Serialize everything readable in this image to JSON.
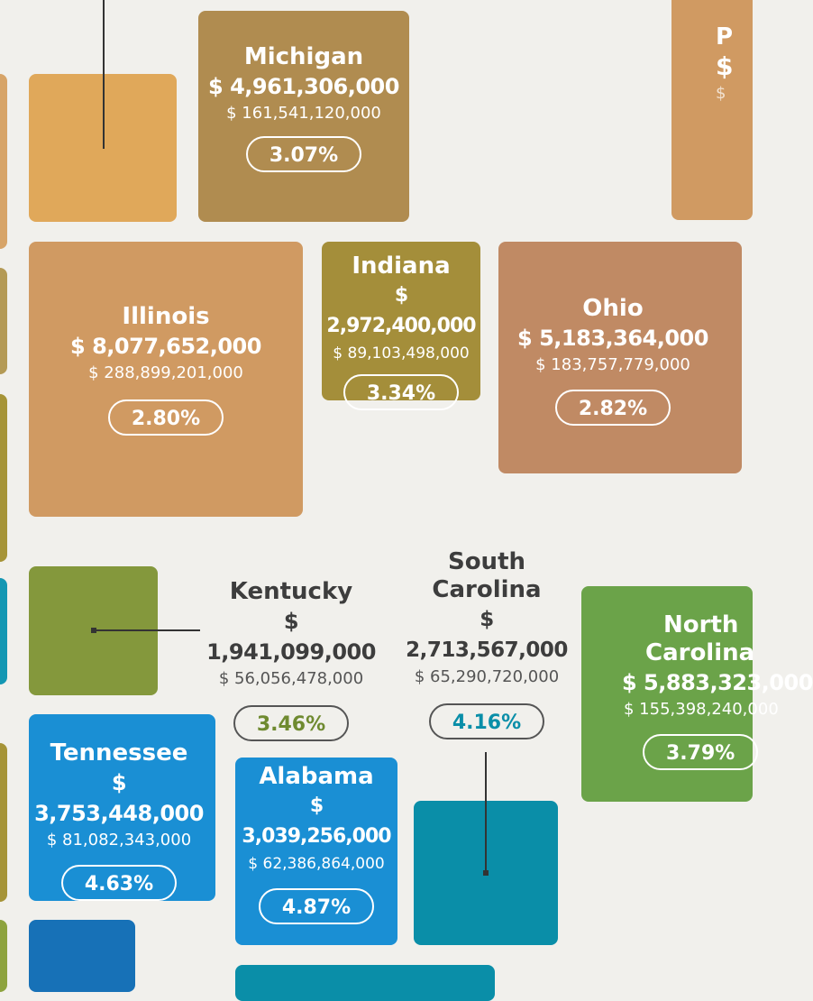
{
  "states": {
    "michigan": {
      "name": "Michigan",
      "amount": "$ 4,961,306,000",
      "total": "$ 161,541,120,000",
      "percent": "3.07%"
    },
    "illinois": {
      "name": "Illinois",
      "amount": "$ 8,077,652,000",
      "total": "$ 288,899,201,000",
      "percent": "2.80%"
    },
    "indiana": {
      "name": "Indiana",
      "amount": "$ 2,972,400,000",
      "total": "$ 89,103,498,000",
      "percent": "3.34%"
    },
    "ohio": {
      "name": "Ohio",
      "amount": "$ 5,183,364,000",
      "total": "$ 183,757,779,000",
      "percent": "2.82%"
    },
    "kentucky": {
      "name": "Kentucky",
      "amount": "$ 1,941,099,000",
      "total": "$ 56,056,478,000",
      "percent": "3.46%"
    },
    "south_carolina": {
      "name_line1": "South",
      "name_line2": "Carolina",
      "amount": "$ 2,713,567,000",
      "total": "$ 65,290,720,000",
      "percent": "4.16%"
    },
    "north_carolina": {
      "name_line1": "North",
      "name_line2": "Carolina",
      "amount": "$ 5,883,323,000",
      "total": "$ 155,398,240,000",
      "percent": "3.79%"
    },
    "tennessee": {
      "name": "Tennessee",
      "amount": "$ 3,753,448,000",
      "total": "$ 81,082,343,000",
      "percent": "4.63%"
    },
    "alabama": {
      "name": "Alabama",
      "amount": "$ 3,039,256,000",
      "total": "$ 62,386,864,000",
      "percent": "4.87%"
    },
    "partial_top_right": {
      "name": "P",
      "amount": "$",
      "total": "$"
    }
  },
  "colors": {
    "background": "#f1f0ec",
    "michigan": "#b08c50",
    "illinois": "#d09a62",
    "indiana": "#a48e3a",
    "ohio": "#c08a64",
    "kentucky_tile": "#84983c",
    "kentucky_percent": "#6f8a30",
    "south_carolina_tile": "#0a8ea8",
    "south_carolina_percent": "#0a8ea8",
    "north_carolina": "#6ba349",
    "tennessee": "#1a8fd4",
    "alabama": "#1a8fd4",
    "small_orange_tile": "#e0a85a",
    "bottom_blue_tile": "#1771b7"
  }
}
